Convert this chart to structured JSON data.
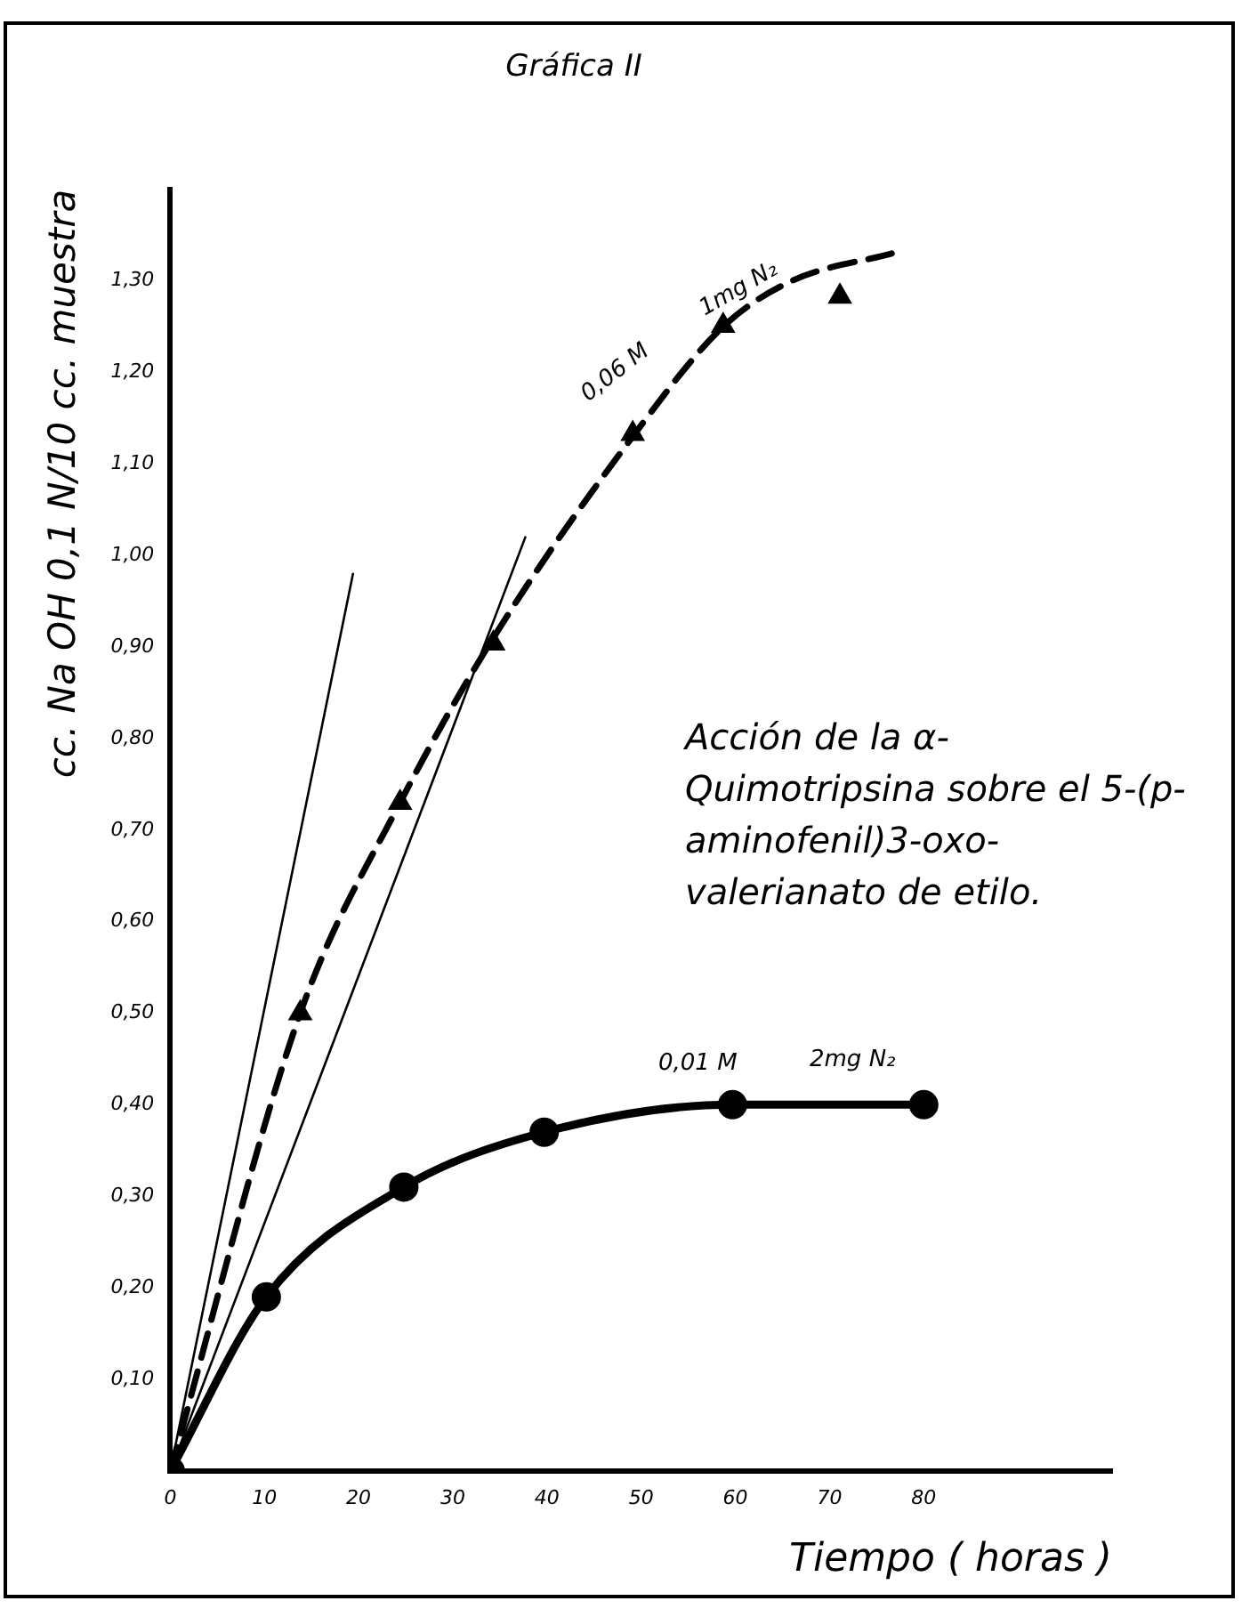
{
  "chart_data": {
    "type": "line",
    "title": "Gráfica II",
    "xlabel": "Tiempo ( horas )",
    "ylabel": "cc. Na OH 0,1 N/10 cc. muestra",
    "xlim": [
      0,
      100
    ],
    "xticks": [
      0,
      10,
      20,
      30,
      40,
      50,
      60,
      70,
      80
    ],
    "ylim": [
      0,
      1.4
    ],
    "yticks": [
      {
        "value": 0.1,
        "label": "0,10"
      },
      {
        "value": 0.2,
        "label": "0,20"
      },
      {
        "value": 0.3,
        "label": "0,30"
      },
      {
        "value": 0.4,
        "label": "0,40"
      },
      {
        "value": 0.5,
        "label": "0,50"
      },
      {
        "value": 0.6,
        "label": "0,60"
      },
      {
        "value": 0.7,
        "label": "0,70"
      },
      {
        "value": 0.8,
        "label": "0,80"
      },
      {
        "value": 0.9,
        "label": "0,90"
      },
      {
        "value": 1.0,
        "label": "1,00"
      },
      {
        "value": 1.1,
        "label": "1,10"
      },
      {
        "value": 1.2,
        "label": "1,20"
      },
      {
        "value": 1.3,
        "label": "1,30"
      }
    ],
    "grid": false,
    "legend": false,
    "series": [
      {
        "color": "#000000",
        "marker": "circle",
        "line_style": "solid",
        "x": [
          0,
          10.2,
          24.8,
          39.7,
          59.7,
          80
        ],
        "values": [
          0,
          0.19,
          0.31,
          0.37,
          0.4,
          0.4
        ]
      },
      {
        "color": "#000000",
        "marker": "none",
        "line_style": "dashed",
        "x": [
          0,
          13.8,
          24.4,
          34.3,
          49.1,
          58.7,
          66,
          76.6
        ],
        "values": [
          0,
          0.5,
          0.73,
          0.91,
          1.13,
          1.25,
          1.3,
          1.33
        ]
      },
      {
        "type": "scatter",
        "color": "#000000",
        "marker": "triangle",
        "x": [
          13.8,
          24.4,
          34.3,
          49.1,
          58.7,
          71.1
        ],
        "values": [
          0.5,
          0.73,
          0.904,
          1.133,
          1.251,
          1.283
        ]
      },
      {
        "color": "#000000",
        "marker": "none",
        "line_style": "solid",
        "x": [
          0,
          19.4
        ],
        "values": [
          0,
          0.98
        ]
      },
      {
        "color": "#000000",
        "marker": "none",
        "line_style": "solid",
        "x": [
          0,
          37.7
        ],
        "values": [
          0,
          1.02
        ]
      }
    ],
    "annotations": [
      "0,01 M",
      "2mg N₂",
      "0,06 M",
      "1mg N₂",
      "Acción de la α- Quimotripsina sobre el 5-(p-aminofenil)3-oxo-valerianato de etilo."
    ]
  }
}
